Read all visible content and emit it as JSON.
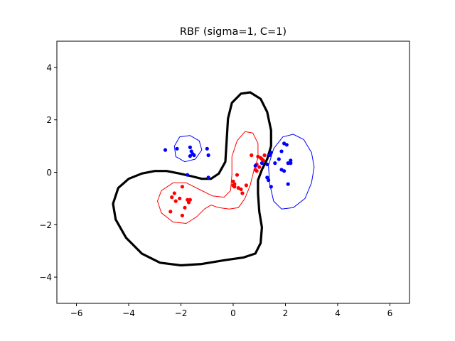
{
  "chart_data": {
    "type": "scatter",
    "title": "RBF (sigma=1, C=1)",
    "xlabel": "",
    "ylabel": "",
    "xlim": [
      -6.75,
      6.75
    ],
    "ylim": [
      -5,
      5
    ],
    "xticks": [
      -6,
      -4,
      -2,
      0,
      2,
      4,
      6
    ],
    "yticks": [
      -4,
      -2,
      0,
      2,
      4
    ],
    "xtick_labels": [
      "−6",
      "−4",
      "−2",
      "0",
      "2",
      "4",
      "6"
    ],
    "ytick_labels": [
      "−4",
      "−2",
      "0",
      "2",
      "4"
    ],
    "grid": false,
    "legend": "none",
    "series": [
      {
        "color": "#ff0000",
        "points": [
          [
            -2.25,
            -0.8
          ],
          [
            -2.35,
            -0.95
          ],
          [
            -2.2,
            -1.1
          ],
          [
            -2.05,
            -1.0
          ],
          [
            -1.95,
            -0.55
          ],
          [
            -1.75,
            -1.05
          ],
          [
            -1.7,
            -1.15
          ],
          [
            -1.65,
            -1.05
          ],
          [
            -1.85,
            -1.35
          ],
          [
            -2.4,
            -1.5
          ],
          [
            -1.95,
            -1.65
          ],
          [
            0.0,
            -0.35
          ],
          [
            0.05,
            -0.45
          ],
          [
            0.15,
            -0.1
          ],
          [
            0.2,
            -0.6
          ],
          [
            0.3,
            -0.65
          ],
          [
            0.35,
            -0.8
          ],
          [
            0.5,
            -0.5
          ],
          [
            0.0,
            -0.5
          ],
          [
            0.05,
            -0.55
          ],
          [
            0.7,
            0.65
          ],
          [
            0.95,
            0.6
          ],
          [
            1.05,
            0.55
          ],
          [
            1.2,
            0.65
          ],
          [
            1.15,
            0.45
          ],
          [
            0.9,
            0.3
          ],
          [
            1.0,
            0.2
          ],
          [
            0.85,
            0.1
          ],
          [
            0.9,
            0.05
          ],
          [
            1.1,
            0.5
          ]
        ]
      },
      {
        "color": "#0000ff",
        "points": [
          [
            -2.6,
            0.85
          ],
          [
            -2.15,
            0.9
          ],
          [
            -1.65,
            0.95
          ],
          [
            -1.6,
            0.8
          ],
          [
            -1.55,
            0.7
          ],
          [
            -1.65,
            0.62
          ],
          [
            -1.5,
            0.65
          ],
          [
            -1.0,
            0.9
          ],
          [
            -0.95,
            0.65
          ],
          [
            -1.75,
            -0.1
          ],
          [
            -0.95,
            -0.2
          ],
          [
            0.85,
            0.25
          ],
          [
            1.1,
            0.35
          ],
          [
            1.3,
            0.3
          ],
          [
            1.4,
            0.65
          ],
          [
            1.45,
            0.75
          ],
          [
            1.6,
            0.35
          ],
          [
            1.75,
            0.5
          ],
          [
            1.85,
            0.1
          ],
          [
            1.95,
            1.1
          ],
          [
            2.05,
            1.05
          ],
          [
            2.1,
            0.35
          ],
          [
            2.2,
            0.35
          ],
          [
            1.3,
            -0.2
          ],
          [
            1.35,
            -0.3
          ],
          [
            1.45,
            -0.55
          ],
          [
            2.1,
            -0.45
          ],
          [
            1.85,
            0.8
          ],
          [
            1.95,
            0.05
          ],
          [
            2.2,
            0.45
          ]
        ]
      }
    ],
    "contours": [
      {
        "color": "#000000",
        "level": "decision boundary",
        "points": [
          [
            -4.4,
            -0.6
          ],
          [
            -4.0,
            -0.25
          ],
          [
            -3.5,
            -0.05
          ],
          [
            -3.0,
            0.05
          ],
          [
            -2.55,
            0.05
          ],
          [
            -2.05,
            -0.05
          ],
          [
            -1.6,
            -0.15
          ],
          [
            -1.2,
            -0.25
          ],
          [
            -0.85,
            -0.25
          ],
          [
            -0.55,
            -0.05
          ],
          [
            -0.3,
            0.4
          ],
          [
            -0.25,
            1.2
          ],
          [
            -0.2,
            2.05
          ],
          [
            -0.05,
            2.65
          ],
          [
            0.3,
            3.0
          ],
          [
            0.65,
            3.05
          ],
          [
            1.05,
            2.8
          ],
          [
            1.3,
            2.3
          ],
          [
            1.45,
            1.6
          ],
          [
            1.45,
            1.0
          ],
          [
            1.3,
            0.5
          ],
          [
            1.1,
            0.1
          ],
          [
            0.95,
            -0.3
          ],
          [
            0.95,
            -0.8
          ],
          [
            1.0,
            -1.5
          ],
          [
            1.1,
            -2.1
          ],
          [
            1.05,
            -2.7
          ],
          [
            0.85,
            -3.1
          ],
          [
            0.4,
            -3.25
          ],
          [
            -0.3,
            -3.35
          ],
          [
            -1.2,
            -3.5
          ],
          [
            -2.0,
            -3.55
          ],
          [
            -2.8,
            -3.45
          ],
          [
            -3.5,
            -3.1
          ],
          [
            -4.1,
            -2.5
          ],
          [
            -4.5,
            -1.8
          ],
          [
            -4.6,
            -1.2
          ],
          [
            -4.4,
            -0.6
          ]
        ]
      },
      {
        "color": "#ff0000",
        "level": "margin",
        "points": [
          [
            -2.9,
            -1.1
          ],
          [
            -2.75,
            -0.7
          ],
          [
            -2.3,
            -0.4
          ],
          [
            -1.8,
            -0.4
          ],
          [
            -1.3,
            -0.65
          ],
          [
            -0.8,
            -0.9
          ],
          [
            -0.35,
            -0.95
          ],
          [
            -0.1,
            -0.7
          ],
          [
            -0.05,
            -0.1
          ],
          [
            -0.05,
            0.6
          ],
          [
            0.15,
            1.2
          ],
          [
            0.45,
            1.55
          ],
          [
            0.75,
            1.5
          ],
          [
            0.95,
            1.1
          ],
          [
            0.95,
            0.55
          ],
          [
            0.8,
            0.1
          ],
          [
            0.65,
            -0.5
          ],
          [
            0.45,
            -1.0
          ],
          [
            0.2,
            -1.35
          ],
          [
            -0.15,
            -1.4
          ],
          [
            -0.55,
            -1.35
          ],
          [
            -0.85,
            -1.25
          ],
          [
            -1.1,
            -1.4
          ],
          [
            -1.4,
            -1.7
          ],
          [
            -1.8,
            -1.95
          ],
          [
            -2.3,
            -1.9
          ],
          [
            -2.75,
            -1.55
          ],
          [
            -2.9,
            -1.1
          ]
        ]
      },
      {
        "color": "#0000ff",
        "level": "margin",
        "points": [
          [
            -2.25,
            1.0
          ],
          [
            -2.05,
            1.35
          ],
          [
            -1.65,
            1.4
          ],
          [
            -1.3,
            1.2
          ],
          [
            -1.2,
            0.85
          ],
          [
            -1.45,
            0.5
          ],
          [
            -1.85,
            0.4
          ],
          [
            -2.2,
            0.6
          ],
          [
            -2.25,
            1.0
          ]
        ]
      },
      {
        "color": "#0000ff",
        "level": "margin",
        "points": [
          [
            1.35,
            0.25
          ],
          [
            1.55,
            0.9
          ],
          [
            1.9,
            1.35
          ],
          [
            2.3,
            1.45
          ],
          [
            2.7,
            1.25
          ],
          [
            3.0,
            0.75
          ],
          [
            3.1,
            0.2
          ],
          [
            3.0,
            -0.4
          ],
          [
            2.75,
            -1.0
          ],
          [
            2.3,
            -1.35
          ],
          [
            1.85,
            -1.4
          ],
          [
            1.55,
            -1.1
          ],
          [
            1.4,
            -0.45
          ],
          [
            1.35,
            0.25
          ]
        ]
      }
    ]
  }
}
